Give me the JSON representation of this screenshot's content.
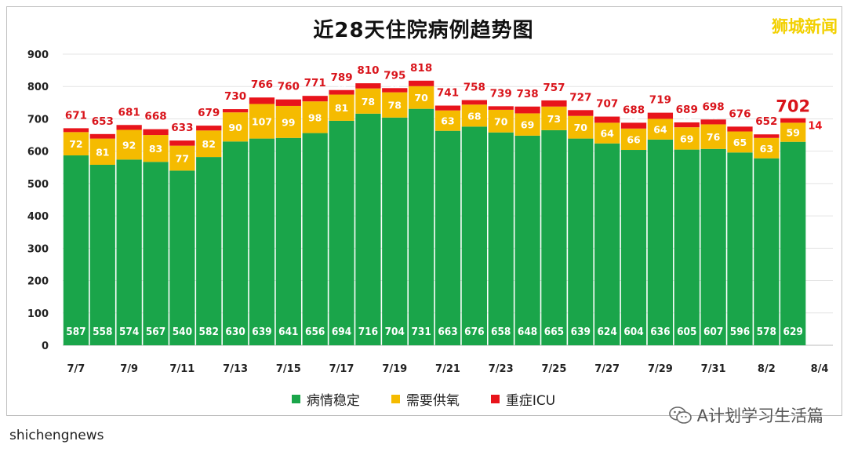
{
  "title": "近28天住院病例趋势图",
  "brand": "狮城新闻",
  "watermark": "A计划学习生活篇",
  "source": "shichengnews",
  "colors": {
    "stable": "#1aa54a",
    "oxygen": "#f5bb00",
    "icu": "#e8141b",
    "total_label": "#d9141b",
    "grid": "#e4e4e4"
  },
  "chart_data": {
    "type": "bar",
    "stacked": true,
    "title": "近28天住院病例趋势图",
    "ylim": [
      0,
      900
    ],
    "yticks": [
      0,
      100,
      200,
      300,
      400,
      500,
      600,
      700,
      800,
      900
    ],
    "grid": true,
    "legend_position": "bottom",
    "xtick_labels": [
      "7/7",
      "7/9",
      "7/11",
      "7/13",
      "7/15",
      "7/17",
      "7/19",
      "7/21",
      "7/23",
      "7/25",
      "7/27",
      "7/29",
      "7/31",
      "8/2",
      "8/4"
    ],
    "categories": [
      "7/7",
      "7/8",
      "7/9",
      "7/10",
      "7/11",
      "7/12",
      "7/13",
      "7/14",
      "7/15",
      "7/16",
      "7/17",
      "7/18",
      "7/19",
      "7/20",
      "7/21",
      "7/22",
      "7/23",
      "7/24",
      "7/25",
      "7/26",
      "7/27",
      "7/28",
      "7/29",
      "7/30",
      "7/31",
      "8/1",
      "8/2",
      "8/3",
      "8/4"
    ],
    "series": [
      {
        "name": "病情稳定",
        "color": "#1aa54a",
        "values": [
          587,
          558,
          574,
          567,
          540,
          582,
          630,
          639,
          641,
          656,
          694,
          716,
          704,
          731,
          663,
          676,
          658,
          648,
          665,
          639,
          624,
          604,
          636,
          605,
          607,
          596,
          578,
          629,
          null
        ]
      },
      {
        "name": "需要供氧",
        "color": "#f5bb00",
        "values": [
          72,
          81,
          92,
          83,
          77,
          82,
          90,
          107,
          99,
          98,
          81,
          78,
          78,
          70,
          63,
          68,
          70,
          69,
          73,
          70,
          64,
          66,
          64,
          69,
          76,
          65,
          63,
          59,
          null
        ]
      },
      {
        "name": "重症ICU",
        "color": "#e8141b",
        "values": [
          12,
          14,
          15,
          18,
          16,
          15,
          10,
          20,
          20,
          17,
          14,
          16,
          13,
          17,
          15,
          14,
          11,
          21,
          19,
          18,
          19,
          18,
          19,
          15,
          15,
          15,
          11,
          14,
          null
        ]
      }
    ],
    "totals": [
      671,
      653,
      681,
      668,
      633,
      679,
      730,
      766,
      760,
      771,
      789,
      810,
      795,
      818,
      741,
      758,
      739,
      738,
      757,
      727,
      707,
      688,
      719,
      689,
      698,
      676,
      652,
      702,
      null
    ],
    "highlight_index": 27
  }
}
